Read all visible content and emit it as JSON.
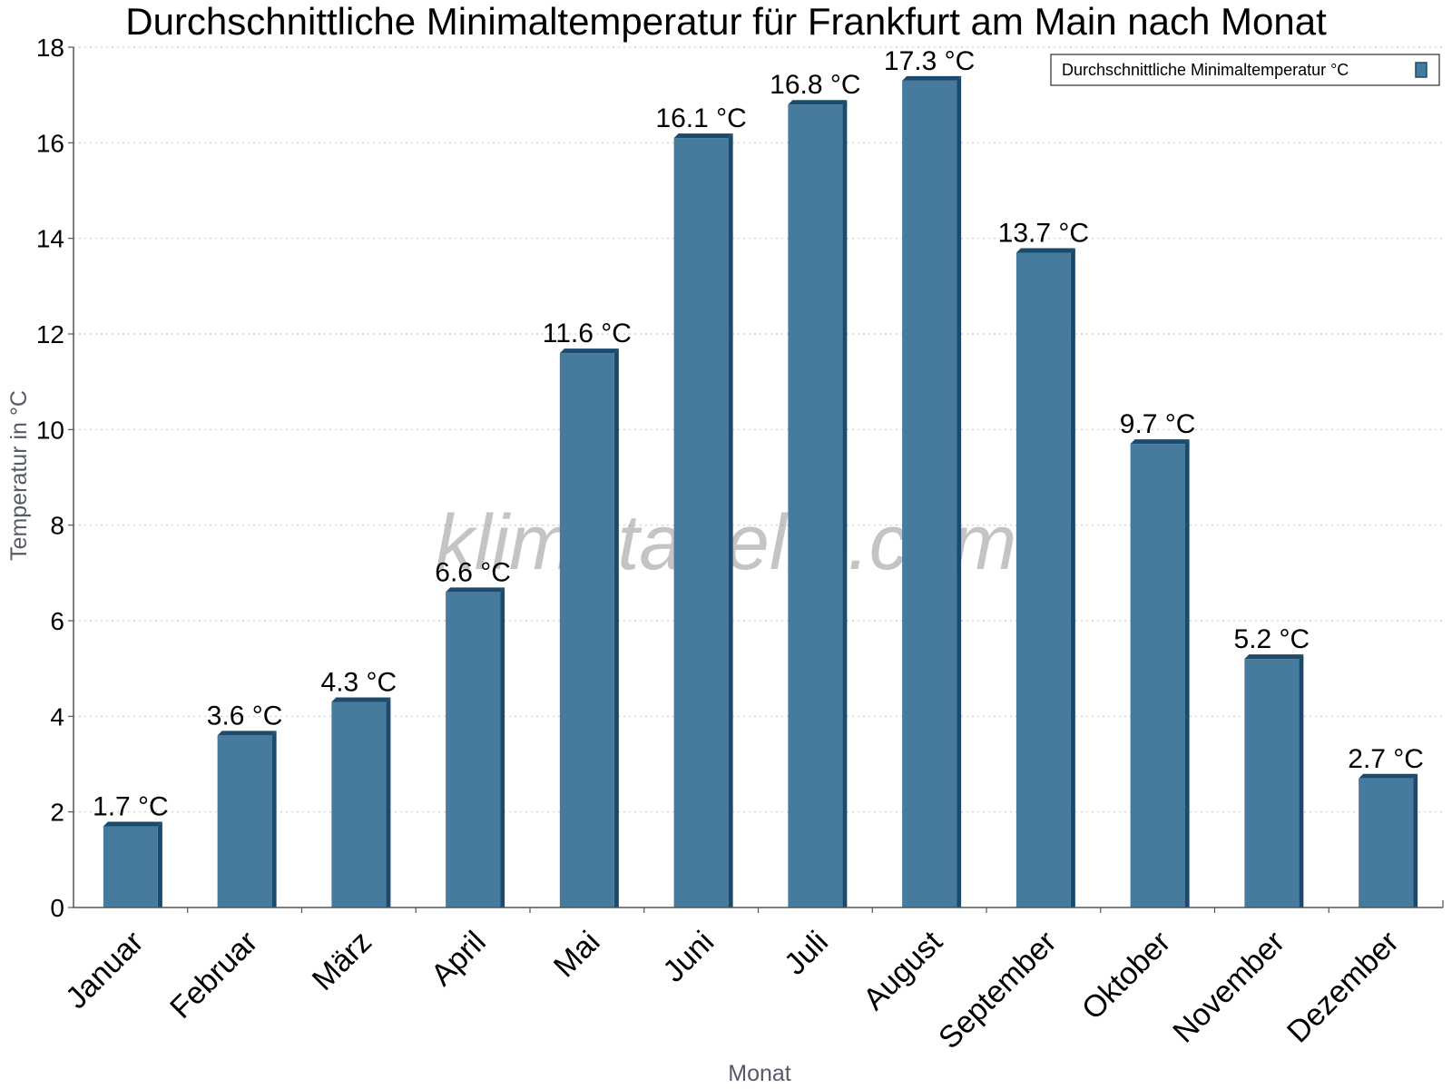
{
  "chart_data": {
    "type": "bar",
    "title": "Durchschnittliche Minimaltemperatur für Frankfurt am Main nach Monat",
    "xlabel": "Monat",
    "ylabel": "Temperatur in °C",
    "categories": [
      "Januar",
      "Februar",
      "März",
      "April",
      "Mai",
      "Juni",
      "Juli",
      "August",
      "September",
      "Oktober",
      "November",
      "Dezember"
    ],
    "series": [
      {
        "name": "Durchschnittliche Minimaltemperatur °C",
        "values": [
          1.7,
          3.6,
          4.3,
          6.6,
          11.6,
          16.1,
          16.8,
          17.3,
          13.7,
          9.7,
          5.2,
          2.7
        ],
        "labels": [
          "1.7 °C",
          "3.6 °C",
          "4.3 °C",
          "6.6 °C",
          "11.6 °C",
          "16.1 °C",
          "16.8 °C",
          "17.3 °C",
          "13.7 °C",
          "9.7 °C",
          "5.2 °C",
          "2.7 °C"
        ]
      }
    ],
    "ylim": [
      0,
      18
    ],
    "yticks": [
      0,
      2,
      4,
      6,
      8,
      10,
      12,
      14,
      16,
      18
    ],
    "grid": true,
    "legend_position": "top-right",
    "watermark": "klimatabelle.com",
    "colors": {
      "bar": "#467b9d",
      "bar_dark": "#1c4a6c",
      "grid": "#c8c8c8",
      "axis": "#555555"
    }
  }
}
